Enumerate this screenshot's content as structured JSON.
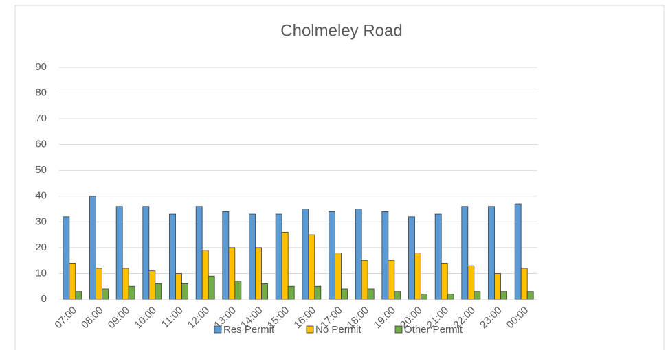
{
  "chart_data": {
    "type": "bar",
    "title": "Cholmeley Road",
    "categories": [
      "07:00",
      "08:00",
      "09:00",
      "10:00",
      "11:00",
      "12:00",
      "13:00",
      "14:00",
      "15:00",
      "16:00",
      "17:00",
      "18:00",
      "19:00",
      "20:00",
      "21:00",
      "22:00",
      "23:00",
      "00:00"
    ],
    "series": [
      {
        "name": "Res Permit",
        "color": "#5b9bd5",
        "values": [
          32,
          40,
          36,
          36,
          33,
          36,
          34,
          33,
          33,
          35,
          34,
          35,
          34,
          32,
          33,
          36,
          36,
          37
        ]
      },
      {
        "name": "No Permit",
        "color": "#ffc000",
        "values": [
          14,
          12,
          12,
          11,
          10,
          19,
          20,
          20,
          26,
          25,
          18,
          15,
          15,
          18,
          14,
          13,
          10,
          12
        ]
      },
      {
        "name": "Other Permit",
        "color": "#70ad47",
        "values": [
          3,
          4,
          5,
          6,
          6,
          9,
          7,
          6,
          5,
          5,
          4,
          4,
          3,
          2,
          2,
          3,
          3,
          3
        ]
      }
    ],
    "ylim": [
      0,
      90
    ],
    "yticks": [
      0,
      10,
      20,
      30,
      40,
      50,
      60,
      70,
      80,
      90
    ],
    "grid": true,
    "legend": "bottom"
  }
}
